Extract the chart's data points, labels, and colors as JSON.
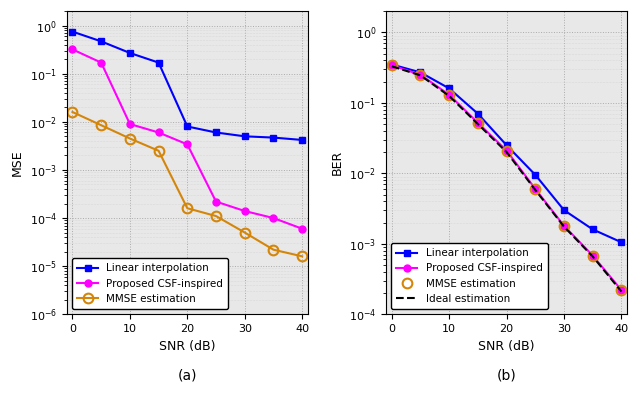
{
  "snr": [
    0,
    5,
    10,
    15,
    20,
    25,
    30,
    35,
    40
  ],
  "mse_linear": [
    0.75,
    0.47,
    0.27,
    0.17,
    0.008,
    0.006,
    0.005,
    0.0047,
    0.0042
  ],
  "mse_csf": [
    0.32,
    0.17,
    0.009,
    0.006,
    0.0034,
    0.00022,
    0.00014,
    0.0001,
    6e-05
  ],
  "mse_mmse": [
    0.016,
    0.0085,
    0.0045,
    0.0025,
    0.00016,
    0.00011,
    5e-05,
    2.2e-05,
    1.6e-05
  ],
  "ber_snr": [
    0,
    5,
    10,
    15,
    20,
    25,
    30,
    35,
    40
  ],
  "ber_linear": [
    0.35,
    0.27,
    0.16,
    0.07,
    0.025,
    0.0095,
    0.003,
    0.0016,
    0.00105
  ],
  "ber_csf": [
    0.34,
    0.25,
    0.13,
    0.052,
    0.021,
    0.006,
    0.0018,
    0.00068,
    0.00022
  ],
  "ber_mmse": [
    0.34,
    0.25,
    0.13,
    0.052,
    0.021,
    0.006,
    0.0018,
    0.00068,
    0.00022
  ],
  "ber_ideal": [
    0.33,
    0.245,
    0.125,
    0.05,
    0.02,
    0.0058,
    0.00175,
    0.00066,
    0.00021
  ],
  "color_linear": "#0000FF",
  "color_csf": "#FF00FF",
  "color_mmse": "#D4860A",
  "color_ideal": "#000000",
  "xlabel": "SNR (dB)",
  "ylabel_mse": "MSE",
  "ylabel_ber": "BER",
  "label_a": "(a)",
  "label_b": "(b)",
  "label_linear": "Linear interpolation",
  "label_csf": "Proposed CSF-inspired",
  "label_mmse": "MMSE estimation",
  "label_ideal": "Ideal estimation",
  "mse_ylim": [
    1e-06,
    2
  ],
  "ber_ylim": [
    0.0001,
    2
  ],
  "xlim": [
    -1,
    41
  ]
}
